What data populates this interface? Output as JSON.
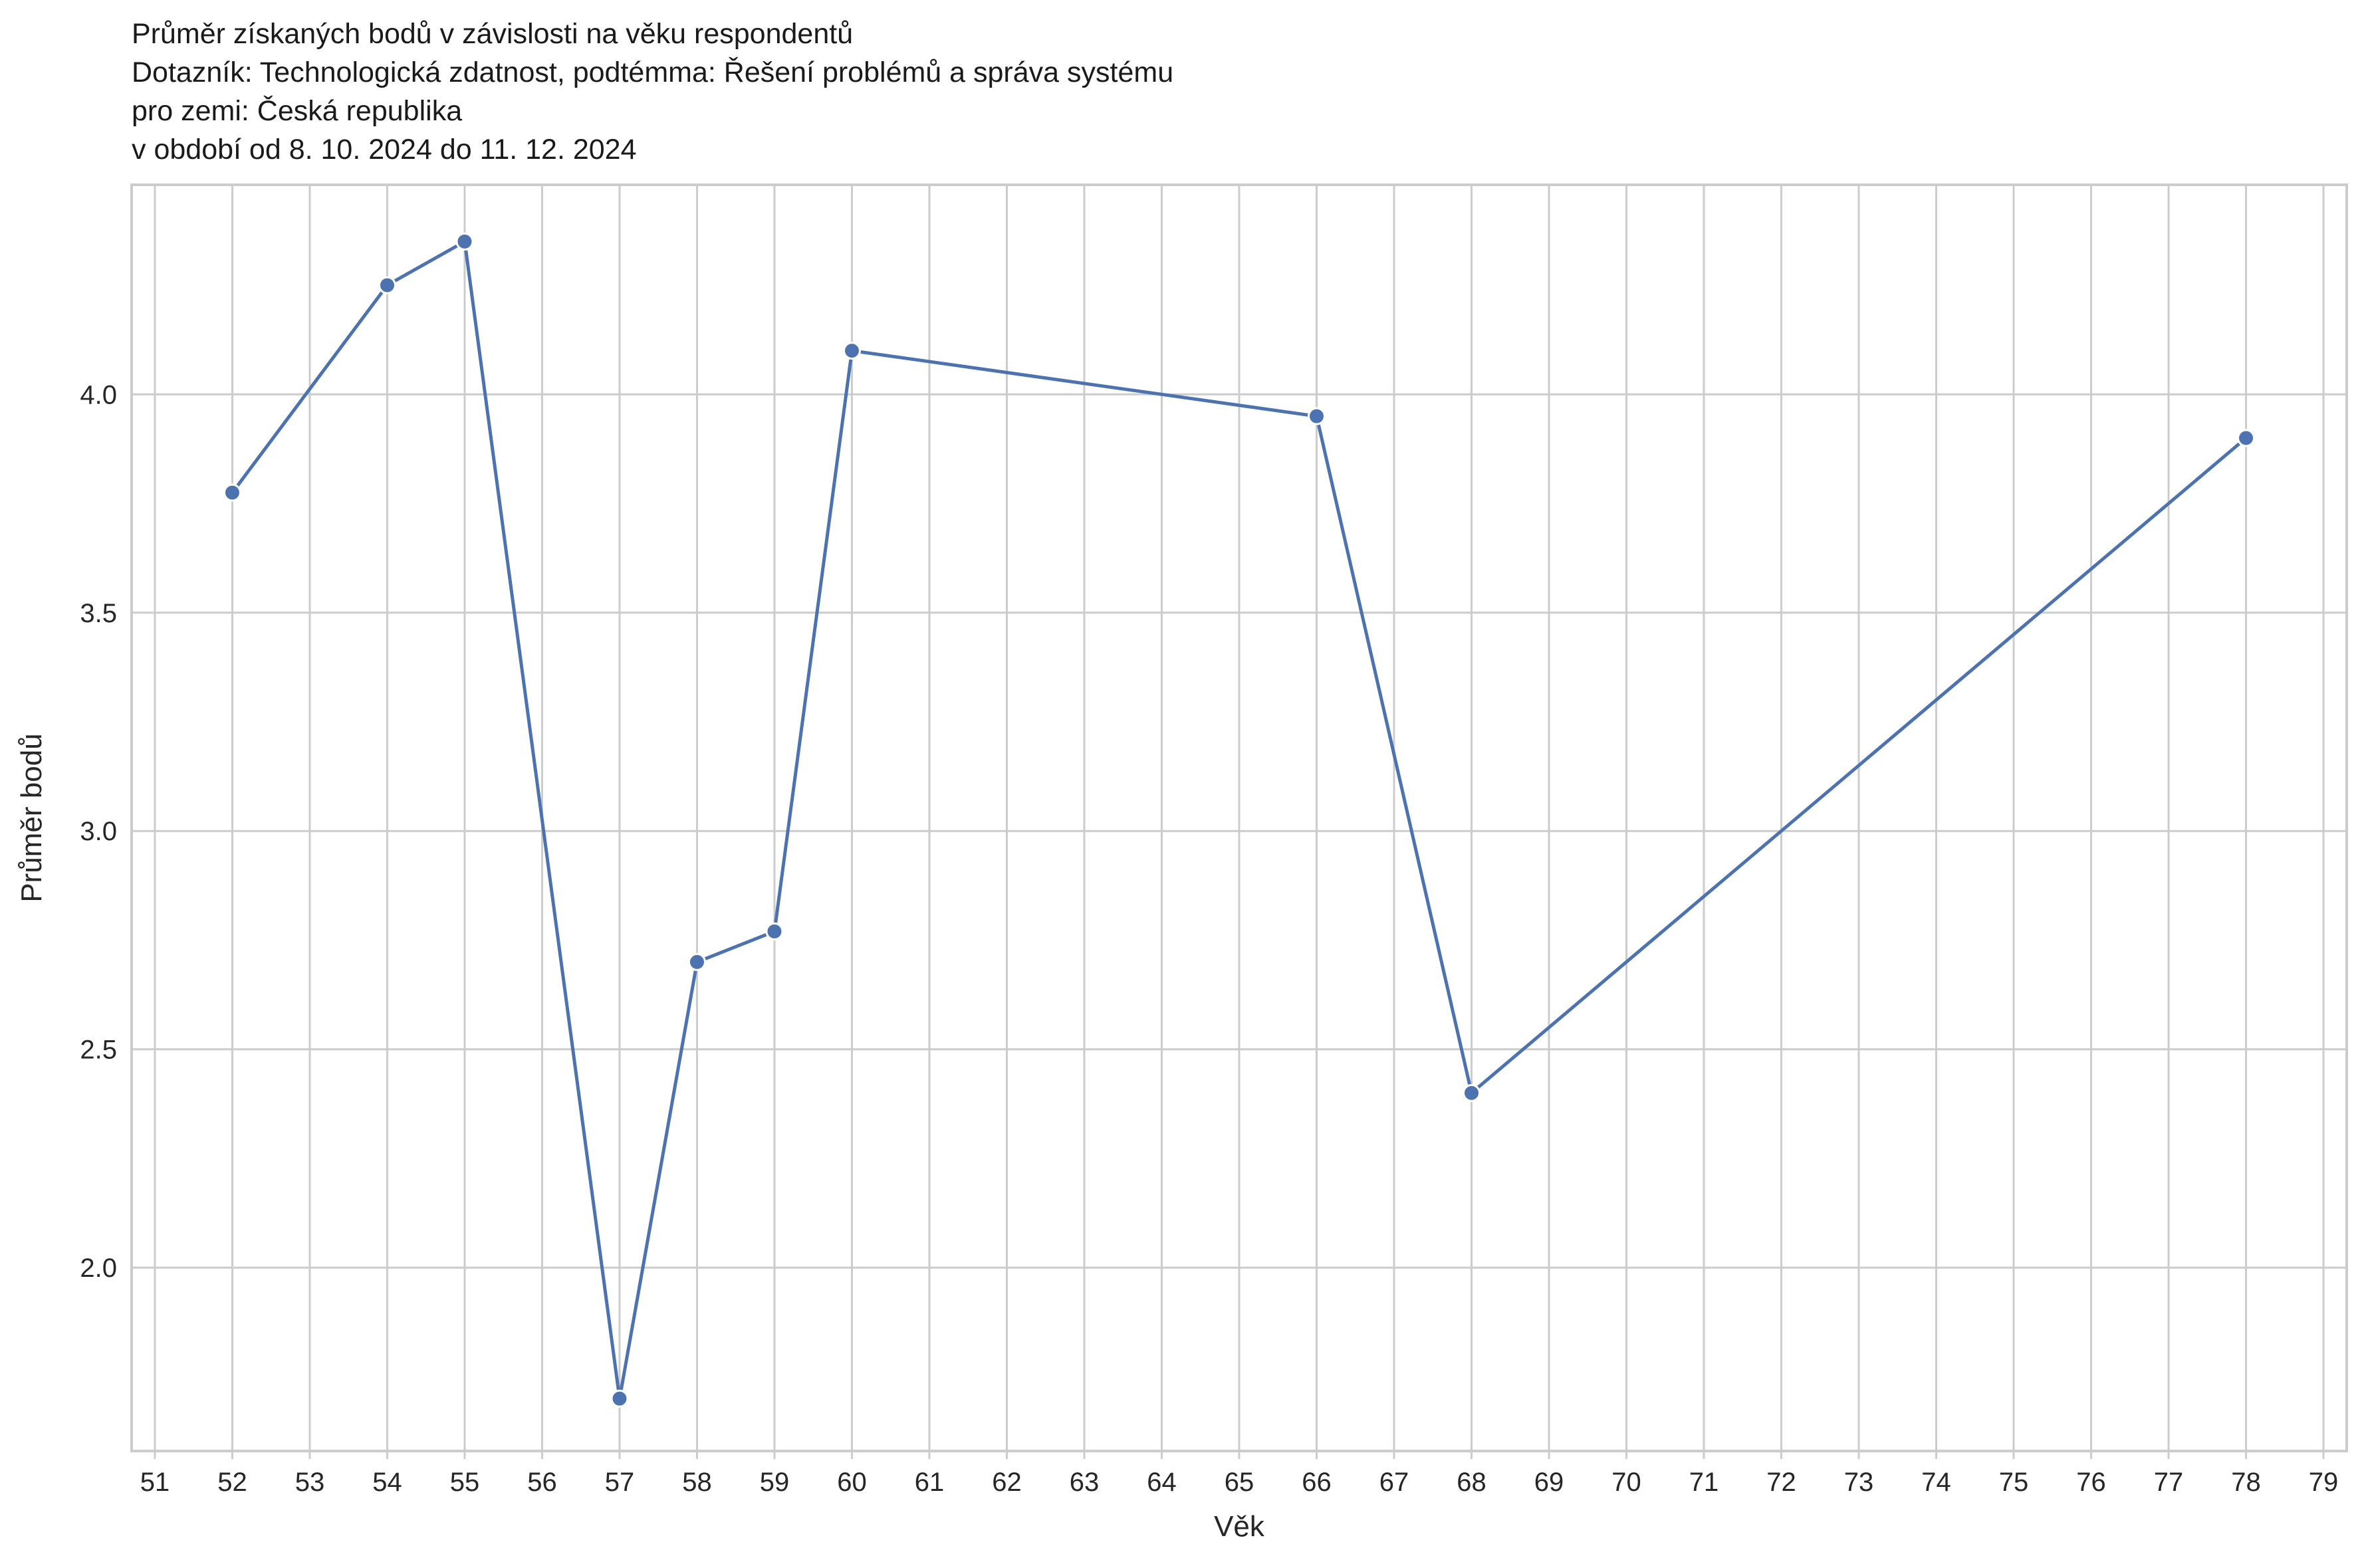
{
  "chart_data": {
    "type": "line",
    "title_lines": [
      "Průměr získaných bodů v závislosti na věku respondentů",
      "Dotazník: Technologická zdatnost, podtémma: Řešení problémů a správa systému",
      "pro zemi: Česká republika",
      "v období od 8. 10. 2024 do 11. 12. 2024"
    ],
    "xlabel": "Věk",
    "ylabel": "Průměr bodů",
    "x_ticks": [
      51,
      52,
      53,
      54,
      55,
      56,
      57,
      58,
      59,
      60,
      61,
      62,
      63,
      64,
      65,
      66,
      67,
      68,
      69,
      70,
      71,
      72,
      73,
      74,
      75,
      76,
      77,
      78,
      79
    ],
    "y_ticks": [
      2.0,
      2.5,
      3.0,
      3.5,
      4.0
    ],
    "y_tick_labels": [
      "2.0",
      "2.5",
      "3.0",
      "3.5",
      "4.0"
    ],
    "xlim": [
      50.7,
      79.3
    ],
    "ylim": [
      1.58,
      4.48
    ],
    "grid": true,
    "series": [
      {
        "name": "Průměr bodů",
        "color": "#4c72b0",
        "x": [
          52,
          54,
          55,
          57,
          58,
          59,
          60,
          66,
          68,
          78
        ],
        "y": [
          3.775,
          4.25,
          4.35,
          1.7,
          2.7,
          2.77,
          4.1,
          3.95,
          2.4,
          3.9
        ]
      }
    ]
  }
}
